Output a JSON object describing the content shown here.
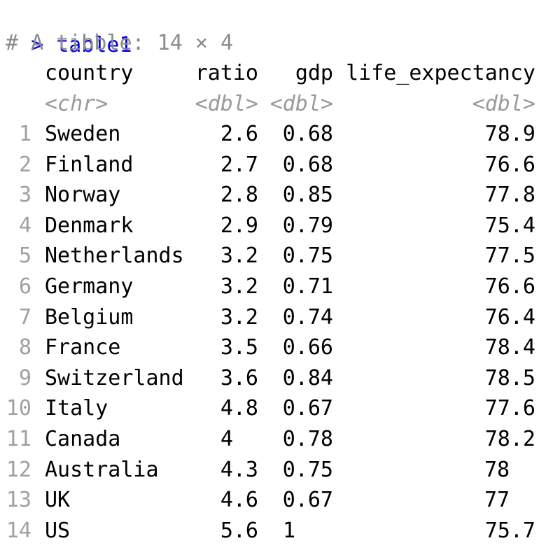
{
  "console": {
    "prompt_symbol": ">",
    "command": "table1",
    "comment": "# A tibble: 14 × 4"
  },
  "table": {
    "columns": [
      {
        "name": "country",
        "type": "<chr>"
      },
      {
        "name": "ratio",
        "type": "<dbl>"
      },
      {
        "name": "gdp",
        "type": "<dbl>"
      },
      {
        "name": "life_expectancy",
        "type": "<dbl>"
      }
    ],
    "rows": [
      {
        "index": "1",
        "country": "Sweden",
        "ratio": "2.6",
        "gdp": "0.68",
        "life_expectancy": "78.9"
      },
      {
        "index": "2",
        "country": "Finland",
        "ratio": "2.7",
        "gdp": "0.68",
        "life_expectancy": "76.6"
      },
      {
        "index": "3",
        "country": "Norway",
        "ratio": "2.8",
        "gdp": "0.85",
        "life_expectancy": "77.8"
      },
      {
        "index": "4",
        "country": "Denmark",
        "ratio": "2.9",
        "gdp": "0.79",
        "life_expectancy": "75.4"
      },
      {
        "index": "5",
        "country": "Netherlands",
        "ratio": "3.2",
        "gdp": "0.75",
        "life_expectancy": "77.5"
      },
      {
        "index": "6",
        "country": "Germany",
        "ratio": "3.2",
        "gdp": "0.71",
        "life_expectancy": "76.6"
      },
      {
        "index": "7",
        "country": "Belgium",
        "ratio": "3.2",
        "gdp": "0.74",
        "life_expectancy": "76.4"
      },
      {
        "index": "8",
        "country": "France",
        "ratio": "3.5",
        "gdp": "0.66",
        "life_expectancy": "78.4"
      },
      {
        "index": "9",
        "country": "Switzerland",
        "ratio": "3.6",
        "gdp": "0.84",
        "life_expectancy": "78.5"
      },
      {
        "index": "10",
        "country": "Italy",
        "ratio": "4.8",
        "gdp": "0.67",
        "life_expectancy": "77.6"
      },
      {
        "index": "11",
        "country": "Canada",
        "ratio": "4",
        "gdp": "0.78",
        "life_expectancy": "78.2"
      },
      {
        "index": "12",
        "country": "Australia",
        "ratio": "4.3",
        "gdp": "0.75",
        "life_expectancy": "78"
      },
      {
        "index": "13",
        "country": "UK",
        "ratio": "4.6",
        "gdp": "0.67",
        "life_expectancy": "77"
      },
      {
        "index": "14",
        "country": "US",
        "ratio": "5.6",
        "gdp": "1",
        "life_expectancy": "75.7"
      }
    ]
  },
  "colors": {
    "prompt": "#0000ee",
    "comment": "#8c8c8c",
    "type_label": "#9a9a9a",
    "row_index": "#a0a0a0",
    "text": "#000000",
    "background": "#ffffff"
  }
}
